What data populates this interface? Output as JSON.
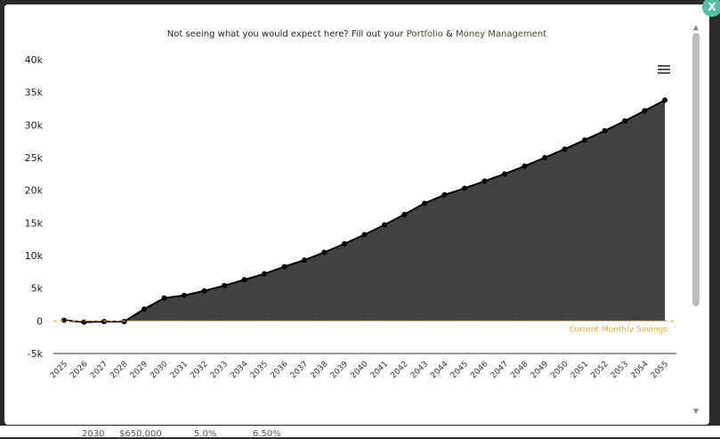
{
  "notice": {
    "prefix": "Not seeing what you would expect here? Fill out your ",
    "link1": "Portfolio",
    "amp": " & ",
    "link2": "Money Management"
  },
  "close_label": "X",
  "backdrop": [
    "2030",
    "$650,000",
    "5.0%",
    "6.50%"
  ],
  "chart_data": {
    "type": "area",
    "title": "",
    "xlabel": "",
    "ylabel": "",
    "categories": [
      "2025",
      "2026",
      "2027",
      "2028",
      "2029",
      "2030",
      "2031",
      "2032",
      "2033",
      "2034",
      "2035",
      "2036",
      "2037",
      "2038",
      "2039",
      "2040",
      "2041",
      "2042",
      "2043",
      "2044",
      "2045",
      "2046",
      "2047",
      "2048",
      "2049",
      "2050",
      "2051",
      "2052",
      "2053",
      "2054",
      "2055"
    ],
    "series": [
      {
        "name": "",
        "values": [
          100,
          -200,
          -100,
          -100,
          1800,
          3500,
          3900,
          4600,
          5400,
          6300,
          7200,
          8300,
          9300,
          10500,
          11800,
          13200,
          14700,
          16300,
          18000,
          19300,
          20300,
          21400,
          22500,
          23700,
          25000,
          26300,
          27700,
          29100,
          30600,
          32200,
          33800
        ]
      }
    ],
    "reference_line": {
      "label": "Current Monthly Savings",
      "value": 0,
      "color": "#e8a33a"
    },
    "yticks": [
      "-5k",
      "0",
      "5k",
      "10k",
      "15k",
      "20k",
      "25k",
      "30k",
      "35k",
      "40k"
    ],
    "ylim": [
      -5000,
      40000
    ],
    "area_color": "#424242",
    "line_color": "#000000",
    "grid": false,
    "legend": "none"
  }
}
